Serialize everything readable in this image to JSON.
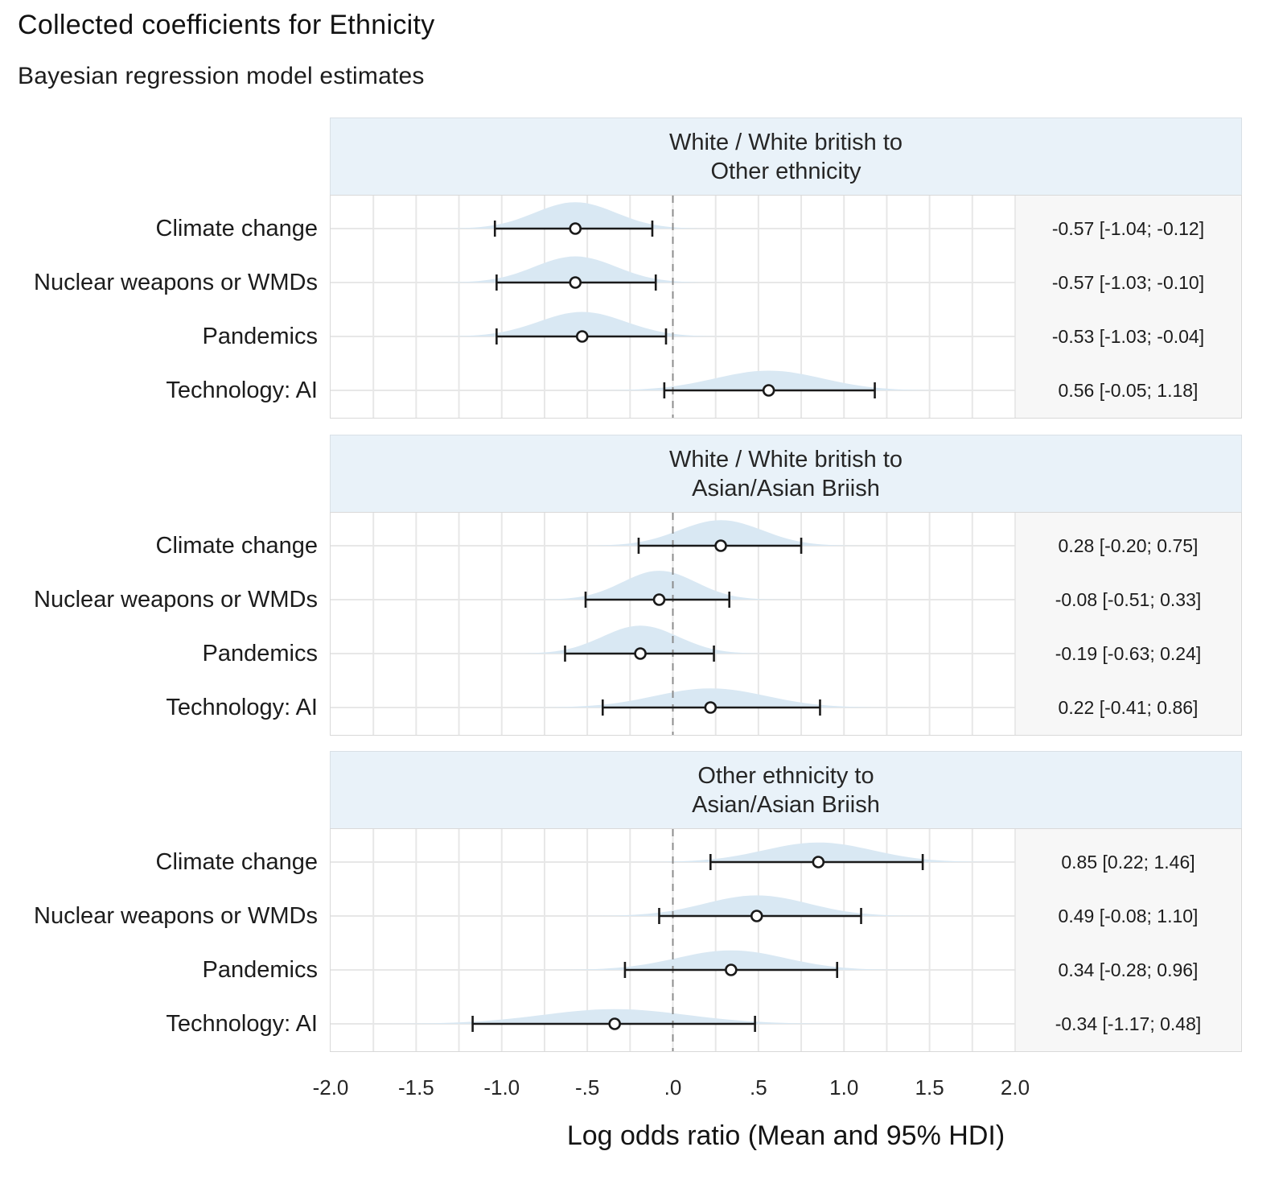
{
  "title": "Collected coefficients for Ethnicity",
  "subtitle": "Bayesian regression model estimates",
  "colors": {
    "header_bg": "#e9f2f9",
    "annotation_bg": "#f7f7f7",
    "panel_border": "#d9d9d9",
    "grid": "#e7e7e7",
    "density_fill": "#d9e8f3",
    "interval": "#1a1a1a",
    "point_fill": "#ffffff",
    "zero_line": "#8c8c8c",
    "separator": "#e3e3e3"
  },
  "chart_data": {
    "type": "forest_plot",
    "title": "Collected coefficients for Ethnicity",
    "subtitle": "Bayesian regression model estimates",
    "interval_type": "Mean and 95% HDI",
    "x_axis": {
      "label": "Log odds ratio (Mean and 95% HDI)",
      "range": [
        -2.0,
        2.0
      ],
      "grid_step": 0.25,
      "ticks": [
        {
          "value": -2.0,
          "label": "-2.0"
        },
        {
          "value": -1.5,
          "label": "-1.5"
        },
        {
          "value": -1.0,
          "label": "-1.0"
        },
        {
          "value": -0.5,
          "label": "-.5"
        },
        {
          "value": 0.0,
          "label": ".0"
        },
        {
          "value": 0.5,
          "label": ".5"
        },
        {
          "value": 1.0,
          "label": "1.0"
        },
        {
          "value": 1.5,
          "label": "1.5"
        },
        {
          "value": 2.0,
          "label": "2.0"
        }
      ]
    },
    "panels": [
      {
        "title_lines": [
          "White / White british to",
          "Other ethnicity"
        ],
        "rows": [
          {
            "label": "Climate change",
            "mean": -0.57,
            "hdi_low": -1.04,
            "hdi_high": -0.12,
            "estimate": "-0.57 [-1.04; -0.12]"
          },
          {
            "label": "Nuclear weapons or WMDs",
            "mean": -0.57,
            "hdi_low": -1.03,
            "hdi_high": -0.1,
            "estimate": "-0.57 [-1.03; -0.10]"
          },
          {
            "label": "Pandemics",
            "mean": -0.53,
            "hdi_low": -1.03,
            "hdi_high": -0.04,
            "estimate": "-0.53 [-1.03; -0.04]"
          },
          {
            "label": "Technology: AI",
            "mean": 0.56,
            "hdi_low": -0.05,
            "hdi_high": 1.18,
            "estimate": "0.56 [-0.05; 1.18]"
          }
        ]
      },
      {
        "title_lines": [
          "White / White british to",
          "Asian/Asian Briish"
        ],
        "rows": [
          {
            "label": "Climate change",
            "mean": 0.28,
            "hdi_low": -0.2,
            "hdi_high": 0.75,
            "estimate": "0.28 [-0.20; 0.75]"
          },
          {
            "label": "Nuclear weapons or WMDs",
            "mean": -0.08,
            "hdi_low": -0.51,
            "hdi_high": 0.33,
            "estimate": "-0.08 [-0.51; 0.33]"
          },
          {
            "label": "Pandemics",
            "mean": -0.19,
            "hdi_low": -0.63,
            "hdi_high": 0.24,
            "estimate": "-0.19 [-0.63; 0.24]"
          },
          {
            "label": "Technology: AI",
            "mean": 0.22,
            "hdi_low": -0.41,
            "hdi_high": 0.86,
            "estimate": "0.22 [-0.41; 0.86]"
          }
        ]
      },
      {
        "title_lines": [
          "Other ethnicity to",
          "Asian/Asian Briish"
        ],
        "rows": [
          {
            "label": "Climate change",
            "mean": 0.85,
            "hdi_low": 0.22,
            "hdi_high": 1.46,
            "estimate": "0.85 [0.22; 1.46]"
          },
          {
            "label": "Nuclear weapons or WMDs",
            "mean": 0.49,
            "hdi_low": -0.08,
            "hdi_high": 1.1,
            "estimate": "0.49 [-0.08; 1.10]"
          },
          {
            "label": "Pandemics",
            "mean": 0.34,
            "hdi_low": -0.28,
            "hdi_high": 0.96,
            "estimate": "0.34 [-0.28; 0.96]"
          },
          {
            "label": "Technology: AI",
            "mean": -0.34,
            "hdi_low": -1.17,
            "hdi_high": 0.48,
            "estimate": "-0.34 [-1.17; 0.48]"
          }
        ]
      }
    ]
  }
}
